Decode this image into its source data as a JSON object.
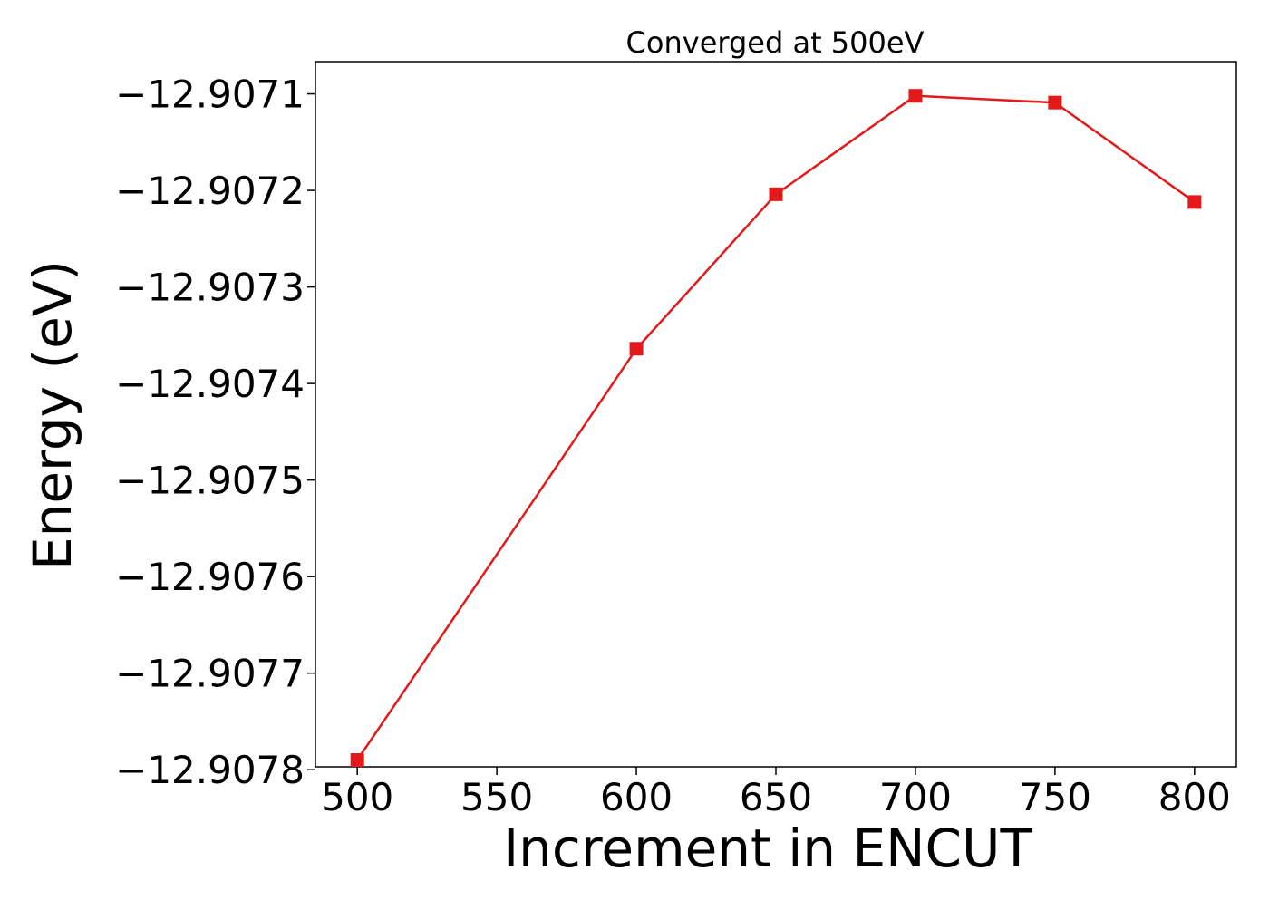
{
  "chart_data": {
    "type": "line",
    "title": "Converged at 500eV",
    "xlabel": "Increment in ENCUT",
    "ylabel": "Energy (eV)",
    "x": [
      500,
      600,
      650,
      700,
      750,
      800
    ],
    "series": [
      {
        "values": [
          -12.90779,
          -12.907364,
          -12.907204,
          -12.907102,
          -12.907109,
          -12.907212
        ],
        "color": "#e31a1c",
        "marker": "square"
      }
    ],
    "xlim": [
      485,
      815
    ],
    "ylim": [
      -12.907797,
      -12.9070666
    ],
    "xticks": [
      500,
      550,
      600,
      650,
      700,
      750,
      800
    ],
    "xtick_labels": [
      "500",
      "550",
      "600",
      "650",
      "700",
      "750",
      "800"
    ],
    "yticks": [
      -12.9078,
      -12.9077,
      -12.9076,
      -12.9075,
      -12.9074,
      -12.9073,
      -12.9072,
      -12.9071
    ],
    "ytick_labels": [
      "−12.9078",
      "−12.9077",
      "−12.9076",
      "−12.9075",
      "−12.9074",
      "−12.9073",
      "−12.9072",
      "−12.9071"
    ],
    "grid": false,
    "legend": "none"
  }
}
